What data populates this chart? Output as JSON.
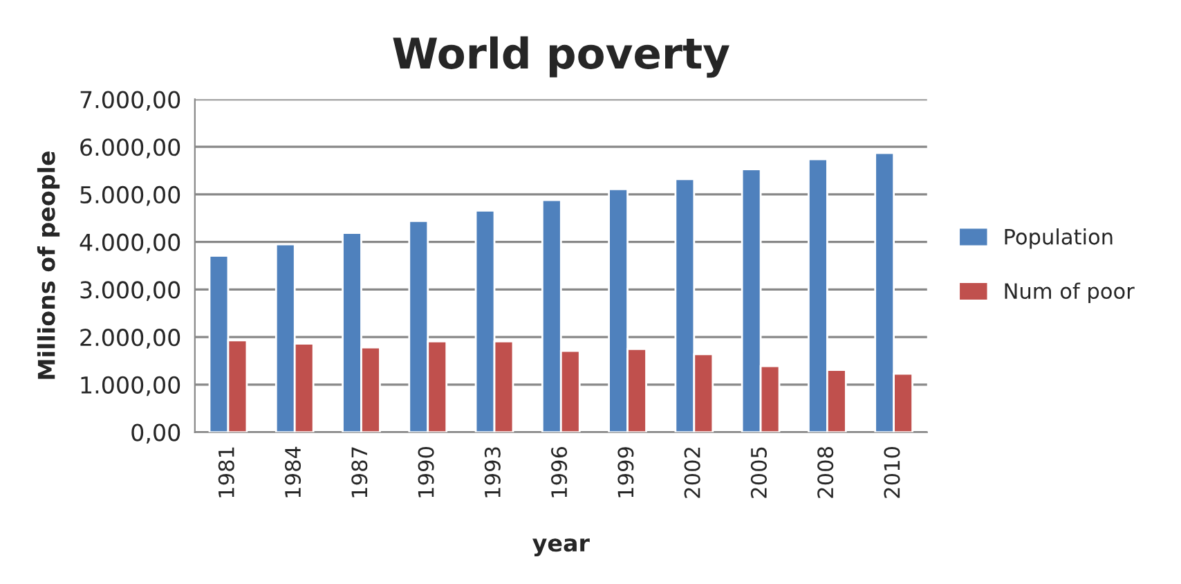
{
  "chart_data": {
    "type": "bar",
    "title": "World poverty",
    "xlabel": "year",
    "ylabel": "Millions of people",
    "categories": [
      "1981",
      "1984",
      "1987",
      "1990",
      "1993",
      "1996",
      "1999",
      "2002",
      "2005",
      "2008",
      "2010"
    ],
    "series": [
      {
        "name": "Population",
        "color": "#4f81bd",
        "values": [
          3710,
          3950,
          4190,
          4440,
          4660,
          4880,
          5110,
          5320,
          5530,
          5740,
          5870
        ]
      },
      {
        "name": "Num of poor",
        "color": "#c0504d",
        "values": [
          1930,
          1860,
          1780,
          1910,
          1910,
          1710,
          1750,
          1640,
          1390,
          1310,
          1230
        ]
      }
    ],
    "ylim": [
      0,
      7000
    ],
    "yticks": [
      {
        "value": 0,
        "label": "0,00"
      },
      {
        "value": 1000,
        "label": "1.000,00"
      },
      {
        "value": 2000,
        "label": "2.000,00"
      },
      {
        "value": 3000,
        "label": "3.000,00"
      },
      {
        "value": 4000,
        "label": "4.000,00"
      },
      {
        "value": 5000,
        "label": "5.000,00"
      },
      {
        "value": 6000,
        "label": "6.000,00"
      },
      {
        "value": 7000,
        "label": "7.000,00"
      }
    ],
    "grid": "y",
    "legend": "right"
  }
}
